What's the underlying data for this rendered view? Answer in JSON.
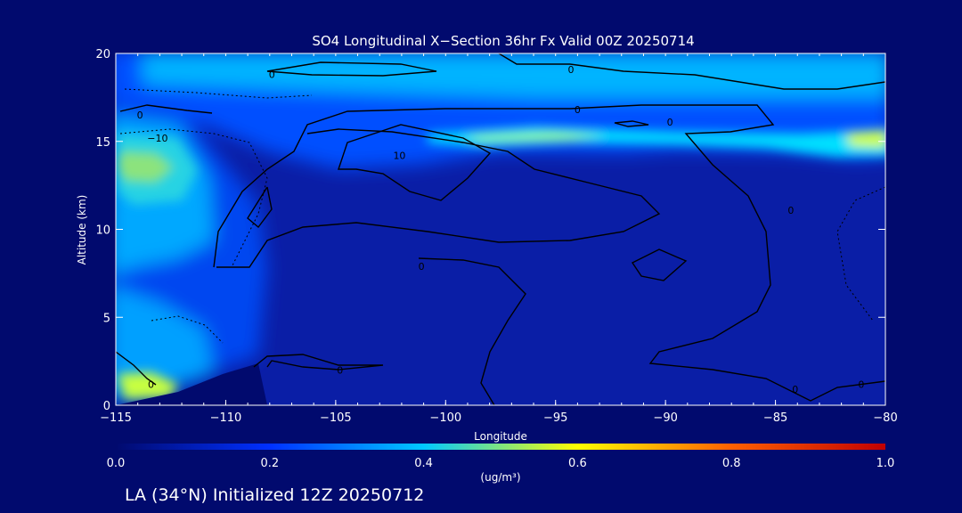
{
  "chart_data": {
    "type": "heatmap",
    "title": "SO4 Longitudinal X−Section 36hr  Fx Valid 00Z 20250714",
    "xlabel": "Longitude",
    "ylabel": "Altitude (km)",
    "xlim": [
      -115,
      -80
    ],
    "ylim": [
      0,
      20
    ],
    "x_ticks": [
      -115,
      -110,
      -105,
      -100,
      -95,
      -90,
      -85,
      -80
    ],
    "x_tick_labels": [
      "−115",
      "−110",
      "−105",
      "−100",
      "−95",
      "−90",
      "−85",
      "−80"
    ],
    "y_ticks": [
      0,
      5,
      10,
      15,
      20
    ],
    "y_tick_labels": [
      "0",
      "5",
      "10",
      "15",
      "20"
    ],
    "colorbar": {
      "min": 0.0,
      "max": 1.0,
      "ticks": [
        0.0,
        0.2,
        0.4,
        0.6,
        0.8,
        1.0
      ],
      "tick_labels": [
        "0.0",
        "0.2",
        "0.4",
        "0.6",
        "0.8",
        "1.0"
      ],
      "unit": "(ug/m³)",
      "colors": [
        "#010a6e",
        "#0030ff",
        "#00c8ff",
        "#ffff00",
        "#ff6000",
        "#c00000"
      ]
    },
    "contour_labels": [
      {
        "text": "0",
        "lon": -113.9,
        "alt": 16.5
      },
      {
        "text": "−10",
        "lon": -113.1,
        "alt": 15.2
      },
      {
        "text": "0",
        "lon": -107.9,
        "alt": 18.8
      },
      {
        "text": "0",
        "lon": -94.3,
        "alt": 19.1
      },
      {
        "text": "0",
        "lon": -94.0,
        "alt": 16.8
      },
      {
        "text": "0",
        "lon": -89.8,
        "alt": 16.1
      },
      {
        "text": "10",
        "lon": -102.1,
        "alt": 14.2
      },
      {
        "text": "0",
        "lon": -84.3,
        "alt": 11.1
      },
      {
        "text": "0",
        "lon": -101.1,
        "alt": 7.9
      },
      {
        "text": "0",
        "lon": -113.4,
        "alt": 1.2
      },
      {
        "text": "0",
        "lon": -104.8,
        "alt": 2.0
      },
      {
        "text": "0",
        "lon": -84.1,
        "alt": 0.9
      },
      {
        "text": "0",
        "lon": -81.1,
        "alt": 1.2
      }
    ]
  },
  "footer": {
    "location_label": "LA (34°N) Initialized 12Z 20250712"
  }
}
